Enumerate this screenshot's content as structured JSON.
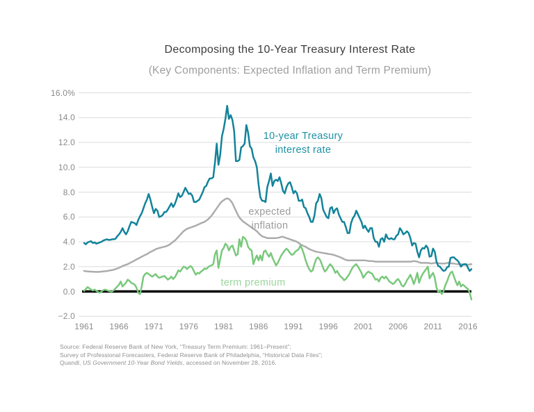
{
  "chart_data": {
    "type": "line",
    "title": "Decomposing the 10-Year Treasury Interest Rate",
    "subtitle": "(Key Components: Expected Inflation and Term Premium)",
    "colors": {
      "treasury_line": "#12839A",
      "inflation_line": "#ACACAC",
      "term_premium_line": "#79C87C",
      "grid": "#DBDBDB",
      "zero_line": "#000000",
      "axis_text": "#8A8A8A"
    },
    "y": {
      "tick_labels": [
        "16.0%",
        "14.0",
        "12.0",
        "10.0",
        "8.0",
        "6.0",
        "4.0",
        "2.0",
        "0.0",
        "−2.0"
      ],
      "tick_values": [
        16,
        14,
        12,
        10,
        8,
        6,
        4,
        2,
        0,
        -2
      ],
      "min": -2,
      "max": 16,
      "grid": true,
      "zero_baseline": true
    },
    "x": {
      "tick_labels": [
        "1961",
        "1966",
        "1971",
        "1976",
        "1981",
        "1986",
        "1991",
        "1996",
        "2001",
        "2006",
        "2011",
        "2016"
      ],
      "tick_values": [
        1961,
        1966,
        1971,
        1976,
        1981,
        1986,
        1991,
        1996,
        2001,
        2006,
        2011,
        2016
      ],
      "min": 1961,
      "max": 2016.5
    },
    "labels": {
      "treasury": {
        "lines": [
          "10-year Treasury",
          "interest rate"
        ],
        "color": "#1E91A4",
        "x": 436,
        "y": 186
      },
      "inflation": {
        "lines": [
          "expected",
          "inflation"
        ],
        "color": "#9B9B9B",
        "x": 388,
        "y": 295
      },
      "term_premium": {
        "lines": [
          "term premium"
        ],
        "color": "#9AD69C",
        "x": 364,
        "y": 397
      }
    },
    "series": [
      {
        "name": "10-year Treasury interest rate",
        "color": "#12839A",
        "x_start": 1961,
        "x_step": 0.25,
        "values": [
          3.9,
          3.8,
          3.95,
          4.0,
          4.05,
          3.9,
          3.95,
          3.85,
          3.9,
          3.95,
          4.0,
          4.1,
          4.15,
          4.2,
          4.15,
          4.15,
          4.2,
          4.2,
          4.25,
          4.45,
          4.6,
          4.8,
          5.1,
          4.8,
          4.6,
          4.85,
          5.25,
          5.6,
          5.55,
          5.5,
          5.35,
          5.75,
          6.05,
          6.3,
          6.7,
          7.1,
          7.4,
          7.85,
          7.4,
          6.8,
          6.3,
          6.65,
          6.5,
          6.0,
          6.05,
          6.15,
          6.4,
          6.4,
          6.6,
          6.85,
          7.1,
          6.8,
          7.05,
          7.45,
          7.9,
          7.6,
          7.7,
          8.0,
          8.35,
          8.1,
          7.85,
          7.9,
          7.7,
          7.2,
          7.2,
          7.3,
          7.4,
          7.7,
          8.0,
          8.4,
          8.5,
          8.85,
          9.1,
          9.1,
          9.2,
          10.4,
          11.9,
          10.2,
          11.0,
          12.5,
          13.1,
          13.9,
          14.95,
          13.9,
          14.2,
          13.8,
          12.9,
          10.5,
          10.5,
          10.6,
          11.6,
          11.7,
          11.9,
          13.4,
          12.8,
          11.7,
          11.5,
          10.8,
          10.5,
          10.0,
          8.6,
          7.6,
          7.3,
          7.3,
          7.2,
          8.4,
          8.9,
          9.5,
          8.5,
          8.9,
          9.0,
          8.9,
          9.2,
          8.7,
          8.1,
          7.9,
          8.4,
          8.7,
          8.8,
          8.4,
          7.9,
          8.1,
          7.9,
          7.3,
          7.3,
          7.4,
          6.8,
          6.7,
          6.3,
          6.0,
          5.6,
          5.6,
          6.1,
          7.1,
          7.3,
          7.85,
          7.5,
          6.6,
          6.3,
          6.0,
          5.9,
          6.7,
          6.8,
          6.3,
          6.6,
          6.7,
          6.2,
          5.9,
          5.6,
          5.6,
          5.2,
          4.7,
          4.7,
          5.5,
          5.9,
          6.1,
          6.5,
          6.2,
          5.9,
          5.6,
          5.1,
          5.3,
          5.0,
          4.8,
          5.1,
          5.1,
          4.3,
          4.0,
          4.0,
          3.6,
          4.2,
          4.3,
          4.0,
          4.6,
          4.3,
          4.2,
          4.3,
          4.2,
          4.2,
          4.5,
          4.6,
          5.1,
          4.9,
          4.6,
          4.7,
          4.85,
          4.7,
          4.3,
          3.7,
          3.9,
          3.85,
          3.2,
          2.75,
          3.3,
          3.5,
          3.45,
          3.7,
          3.5,
          2.8,
          2.85,
          3.45,
          3.2,
          2.4,
          2.05,
          2.0,
          1.8,
          1.65,
          1.7,
          1.95,
          2.0,
          2.7,
          2.75,
          2.75,
          2.6,
          2.5,
          2.3,
          2.0,
          2.15,
          2.2,
          2.2,
          1.9,
          1.65,
          1.8
        ]
      },
      {
        "name": "expected inflation",
        "color": "#ACACAC",
        "x_start": 1961,
        "x_step": 0.25,
        "values": [
          1.65,
          1.63,
          1.62,
          1.6,
          1.6,
          1.58,
          1.58,
          1.57,
          1.57,
          1.58,
          1.6,
          1.62,
          1.63,
          1.65,
          1.67,
          1.7,
          1.72,
          1.75,
          1.8,
          1.85,
          1.9,
          1.97,
          2.05,
          2.1,
          2.15,
          2.2,
          2.28,
          2.35,
          2.42,
          2.5,
          2.58,
          2.65,
          2.72,
          2.8,
          2.87,
          2.95,
          3.0,
          3.1,
          3.18,
          3.25,
          3.32,
          3.4,
          3.45,
          3.5,
          3.53,
          3.57,
          3.6,
          3.65,
          3.7,
          3.78,
          3.88,
          4.0,
          4.1,
          4.25,
          4.4,
          4.55,
          4.7,
          4.85,
          4.95,
          5.05,
          5.1,
          5.15,
          5.2,
          5.25,
          5.3,
          5.37,
          5.43,
          5.5,
          5.55,
          5.6,
          5.7,
          5.8,
          5.95,
          6.1,
          6.3,
          6.5,
          6.7,
          6.9,
          7.1,
          7.25,
          7.35,
          7.45,
          7.5,
          7.45,
          7.3,
          7.1,
          6.8,
          6.5,
          6.2,
          5.95,
          5.8,
          5.65,
          5.55,
          5.45,
          5.35,
          5.25,
          5.15,
          5.05,
          4.95,
          4.85,
          4.7,
          4.55,
          4.45,
          4.4,
          4.35,
          4.3,
          4.3,
          4.3,
          4.3,
          4.3,
          4.3,
          4.32,
          4.35,
          4.4,
          4.4,
          4.35,
          4.3,
          4.25,
          4.2,
          4.15,
          4.1,
          4.05,
          4.0,
          3.9,
          3.8,
          3.72,
          3.65,
          3.6,
          3.5,
          3.42,
          3.35,
          3.3,
          3.25,
          3.2,
          3.18,
          3.15,
          3.12,
          3.1,
          3.08,
          3.05,
          3.02,
          3.0,
          2.98,
          2.95,
          2.9,
          2.85,
          2.8,
          2.75,
          2.68,
          2.6,
          2.55,
          2.5,
          2.5,
          2.5,
          2.5,
          2.5,
          2.5,
          2.5,
          2.5,
          2.5,
          2.5,
          2.5,
          2.48,
          2.45,
          2.45,
          2.45,
          2.43,
          2.4,
          2.4,
          2.4,
          2.4,
          2.4,
          2.4,
          2.4,
          2.4,
          2.4,
          2.4,
          2.4,
          2.4,
          2.4,
          2.4,
          2.4,
          2.4,
          2.4,
          2.4,
          2.4,
          2.4,
          2.4,
          2.42,
          2.45,
          2.43,
          2.4,
          2.35,
          2.3,
          2.3,
          2.3,
          2.3,
          2.3,
          2.28,
          2.25,
          2.28,
          2.3,
          2.3,
          2.28,
          2.25,
          2.25,
          2.25,
          2.25,
          2.3,
          2.3,
          2.28,
          2.25,
          2.25,
          2.22,
          2.2,
          2.2,
          2.2,
          2.18,
          2.15,
          2.15,
          2.15,
          2.18,
          2.2
        ]
      },
      {
        "name": "term premium",
        "color": "#79C87C",
        "x_start": 1961,
        "x_step": 0.25,
        "values": [
          0.05,
          0.2,
          0.35,
          0.25,
          0.15,
          0.08,
          0.15,
          0.05,
          -0.05,
          -0.1,
          0.0,
          0.1,
          0.15,
          0.1,
          0.05,
          0.0,
          0.0,
          0.1,
          0.25,
          0.4,
          0.55,
          0.8,
          0.4,
          0.55,
          0.7,
          0.95,
          0.85,
          0.7,
          0.62,
          0.55,
          0.3,
          -0.1,
          -0.22,
          0.4,
          1.2,
          1.4,
          1.5,
          1.4,
          1.3,
          1.2,
          1.3,
          1.4,
          1.2,
          1.1,
          1.15,
          1.2,
          1.25,
          1.1,
          0.95,
          1.05,
          1.2,
          1.0,
          1.15,
          1.4,
          1.7,
          1.6,
          1.8,
          2.0,
          1.95,
          1.8,
          1.95,
          2.05,
          1.9,
          1.6,
          1.35,
          1.5,
          1.45,
          1.6,
          1.7,
          1.85,
          1.8,
          1.95,
          2.05,
          2.1,
          2.2,
          3.0,
          3.3,
          1.9,
          2.6,
          3.3,
          3.5,
          3.85,
          3.7,
          3.3,
          3.6,
          3.7,
          3.3,
          2.9,
          3.0,
          4.2,
          3.6,
          4.4,
          4.3,
          4.1,
          3.6,
          3.4,
          3.3,
          2.2,
          2.6,
          2.9,
          2.5,
          2.9,
          2.5,
          3.2,
          3.3,
          3.0,
          2.8,
          3.1,
          2.7,
          2.4,
          2.1,
          2.3,
          2.6,
          2.9,
          3.1,
          3.3,
          3.45,
          3.3,
          3.1,
          2.95,
          3.0,
          3.2,
          3.3,
          3.4,
          3.7,
          3.4,
          3.0,
          2.5,
          2.1,
          1.8,
          1.6,
          1.7,
          2.2,
          2.6,
          2.75,
          2.6,
          2.3,
          1.9,
          1.6,
          1.75,
          2.0,
          2.2,
          2.05,
          1.8,
          1.5,
          1.65,
          1.4,
          1.2,
          1.1,
          0.9,
          1.0,
          1.2,
          1.4,
          1.7,
          1.95,
          2.1,
          2.2,
          2.0,
          1.75,
          1.5,
          1.1,
          1.3,
          1.5,
          1.6,
          1.5,
          1.45,
          1.2,
          0.95,
          1.0,
          0.8,
          1.1,
          1.2,
          1.05,
          1.2,
          1.0,
          0.8,
          0.7,
          0.6,
          0.7,
          0.9,
          1.0,
          0.8,
          0.5,
          0.4,
          0.6,
          0.9,
          1.1,
          1.35,
          1.0,
          0.6,
          1.0,
          1.5,
          0.7,
          1.1,
          1.4,
          1.6,
          1.8,
          2.0,
          1.05,
          1.3,
          1.5,
          1.1,
          0.3,
          -0.05,
          0.1,
          -0.2,
          0.0,
          0.5,
          0.8,
          1.2,
          1.5,
          1.6,
          1.2,
          0.8,
          0.5,
          0.8,
          0.4,
          0.55,
          0.45,
          0.3,
          0.2,
          -0.1,
          -0.65
        ]
      }
    ],
    "source": {
      "line1": "Source: Federal Reserve Bank of New York, “Treasury Term Premium: 1961–Present”;",
      "line2": "Survey of Professional Forecasters, Federal Reserve Bank of Philadelphia,  “Historical Data Files”;",
      "line3_prefix": "Quandl, ",
      "line3_italic": "US Government 10-Year Bond Yields",
      "line3_suffix": ", accessed on November 28, 2016."
    }
  }
}
